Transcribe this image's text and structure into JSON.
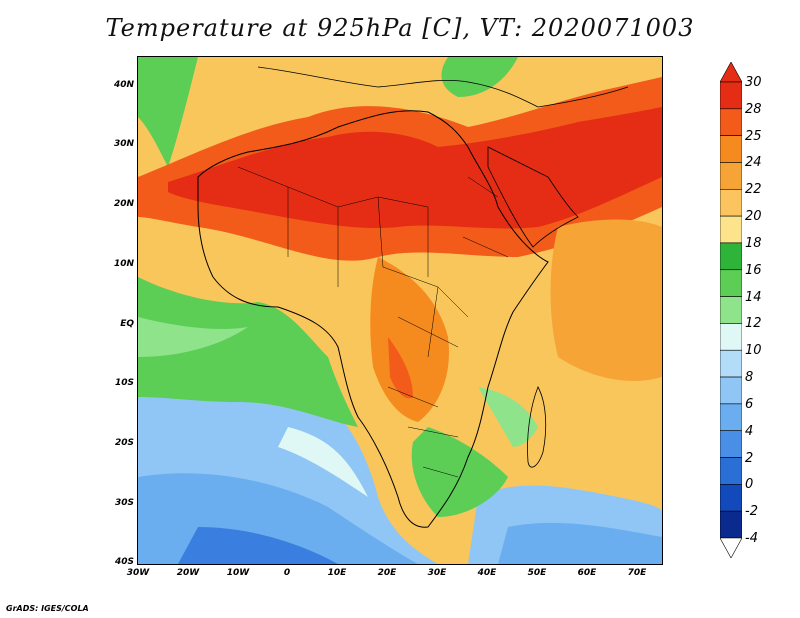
{
  "title": "Temperature at 925hPa [C], VT: 2020071003",
  "credit": "GrADS: IGES/COLA",
  "map": {
    "lat_labels": [
      "40N",
      "30N",
      "20N",
      "10N",
      "EQ",
      "10S",
      "20S",
      "30S",
      "40S"
    ],
    "lon_labels": [
      "30W",
      "20W",
      "10W",
      "0",
      "10E",
      "20E",
      "30E",
      "40E",
      "50E",
      "60E",
      "70E"
    ]
  },
  "colorbar": {
    "labels": [
      "30",
      "28",
      "25",
      "24",
      "22",
      "20",
      "18",
      "16",
      "14",
      "12",
      "10",
      "8",
      "6",
      "4",
      "2",
      "0",
      "-2",
      "-4"
    ],
    "colors": [
      "#e52d16",
      "#f25b1a",
      "#f58a1f",
      "#f7a436",
      "#fbc45e",
      "#fde48c",
      "#2fb43a",
      "#5ccd55",
      "#8fe38a",
      "#dff7f5",
      "#b2dcf8",
      "#8fc6f5",
      "#6aaef0",
      "#4a8fe6",
      "#2a6fd6",
      "#1249bb",
      "#0b2a8d",
      "#ffffff"
    ]
  }
}
